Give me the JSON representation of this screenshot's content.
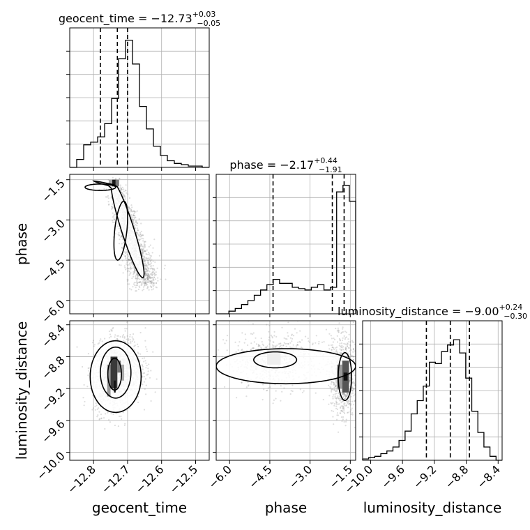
{
  "chart_data": {
    "type": "corner",
    "grid": true,
    "parameters": [
      {
        "name": "geocent_time",
        "range": [
          -12.87,
          -12.46
        ],
        "ticks": [
          -12.8,
          -12.7,
          -12.6,
          -12.5
        ],
        "tick_labels": [
          "−12.8",
          "−12.7",
          "−12.6",
          "−12.5"
        ],
        "quantiles": [
          -12.78,
          -12.73,
          -12.7
        ],
        "title": {
          "prefix": "geocent_time = ",
          "value": "−12.73",
          "plus": "+0.03",
          "minus": "−0.05"
        },
        "histogram": [
          0,
          0.06,
          0.17,
          0.19,
          0.23,
          0.33,
          0.52,
          0.82,
          0.96,
          0.78,
          0.46,
          0.29,
          0.16,
          0.09,
          0.05,
          0.03,
          0.02,
          0.01,
          0.01,
          0.0
        ]
      },
      {
        "name": "phase",
        "range": [
          -6.5,
          -1.3
        ],
        "ticks": [
          -6.0,
          -4.5,
          -3.0,
          -1.5
        ],
        "tick_labels": [
          "−6.0",
          "−4.5",
          "−3.0",
          "−1.5"
        ],
        "quantiles": [
          -4.38,
          -2.17,
          -1.73
        ],
        "title": {
          "prefix": "phase = ",
          "value": "−2.17",
          "plus": "+0.44",
          "minus": "−1.91"
        },
        "histogram": [
          0.0,
          0.0,
          0.02,
          0.04,
          0.07,
          0.1,
          0.14,
          0.18,
          0.22,
          0.26,
          0.23,
          0.23,
          0.2,
          0.19,
          0.18,
          0.2,
          0.22,
          0.18,
          0.2,
          0.92,
          0.97,
          0.85
        ]
      },
      {
        "name": "luminosity_distance",
        "range": [
          -10.1,
          -8.35
        ],
        "ticks": [
          -10.0,
          -9.6,
          -9.2,
          -8.8,
          -8.4
        ],
        "tick_labels": [
          "−10.0",
          "−9.6",
          "−9.2",
          "−8.8",
          "−8.4"
        ],
        "quantiles": [
          -9.3,
          -9.0,
          -8.76
        ],
        "title": {
          "prefix": "luminosity_distance = ",
          "value": "−9.00",
          "plus": "+0.24",
          "minus": "−0.30"
        },
        "histogram": [
          0.01,
          0.02,
          0.03,
          0.05,
          0.07,
          0.1,
          0.15,
          0.22,
          0.35,
          0.45,
          0.56,
          0.74,
          0.73,
          0.82,
          0.87,
          0.91,
          0.81,
          0.62,
          0.37,
          0.21,
          0.1,
          0.03,
          0.0
        ]
      }
    ],
    "pairs": [
      {
        "x": 0,
        "y": 1,
        "description": "geocent_time vs phase: tight curved band from (-12.73,-1.6) down to (-12.65,-5.3)"
      },
      {
        "x": 0,
        "y": 2,
        "description": "geocent_time vs luminosity_distance: blob centred near (-12.73,-9.0)"
      },
      {
        "x": 1,
        "y": 2,
        "description": "phase vs luminosity_distance: broad band at ld≈-8.8 plus mode near phase -1.8"
      }
    ],
    "xlabels": [
      "geocent_time",
      "phase",
      "luminosity_distance"
    ],
    "ylabels": [
      "",
      "phase",
      "luminosity_distance"
    ]
  }
}
